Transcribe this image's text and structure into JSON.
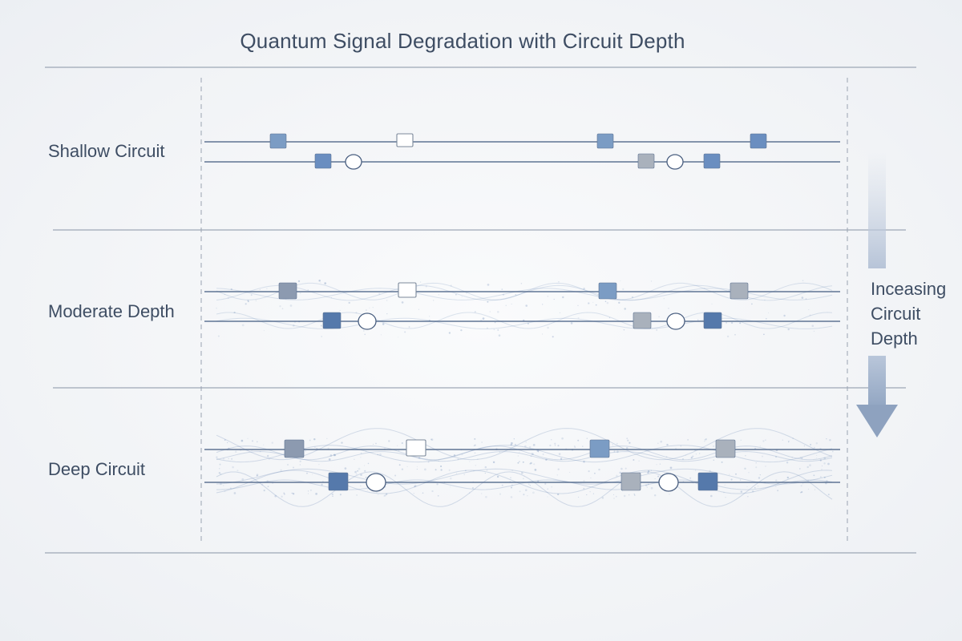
{
  "title": "Quantum Signal Degradation with Circuit Depth",
  "arrow": {
    "lines": [
      "Inceasing",
      "Circuit",
      "Depth"
    ]
  },
  "colors": {
    "wire": "#4f6689",
    "gate_blue_light": "#7b9cc4",
    "gate_blue_mid": "#6a8ec0",
    "gate_blue_dark": "#5579ab",
    "gate_gray": "#a9b1bc",
    "gate_slate": "#8c9ab0",
    "gate_white": "#ffffff",
    "rule": "#8995a6",
    "noise": "#6f8db8"
  },
  "rows": [
    {
      "label": "Shallow Circuit",
      "noise_level": 0,
      "qubit_1_gates": [
        {
          "type": "square",
          "color": "gate_blue_light"
        },
        {
          "type": "square",
          "color": "gate_white"
        },
        {
          "type": "square",
          "color": "gate_blue_light"
        },
        {
          "type": "square",
          "color": "gate_blue_mid"
        }
      ],
      "qubit_2_gates": [
        {
          "type": "square",
          "color": "gate_blue_mid"
        },
        {
          "type": "circle",
          "color": "gate_white"
        },
        {
          "type": "square",
          "color": "gate_gray"
        },
        {
          "type": "circle",
          "color": "gate_white"
        },
        {
          "type": "square",
          "color": "gate_blue_mid"
        }
      ]
    },
    {
      "label": "Moderate Depth",
      "noise_level": 1,
      "qubit_1_gates": [
        {
          "type": "square",
          "color": "gate_slate"
        },
        {
          "type": "square",
          "color": "gate_white"
        },
        {
          "type": "square",
          "color": "gate_blue_light"
        },
        {
          "type": "square",
          "color": "gate_gray"
        }
      ],
      "qubit_2_gates": [
        {
          "type": "square",
          "color": "gate_blue_dark"
        },
        {
          "type": "circle",
          "color": "gate_white"
        },
        {
          "type": "square",
          "color": "gate_gray"
        },
        {
          "type": "circle",
          "color": "gate_white"
        },
        {
          "type": "square",
          "color": "gate_blue_dark"
        }
      ]
    },
    {
      "label": "Deep Circuit",
      "noise_level": 2,
      "qubit_1_gates": [
        {
          "type": "square",
          "color": "gate_slate"
        },
        {
          "type": "square",
          "color": "gate_white"
        },
        {
          "type": "square",
          "color": "gate_blue_light"
        },
        {
          "type": "square",
          "color": "gate_gray"
        }
      ],
      "qubit_2_gates": [
        {
          "type": "square",
          "color": "gate_blue_dark"
        },
        {
          "type": "circle",
          "color": "gate_white"
        },
        {
          "type": "square",
          "color": "gate_gray"
        },
        {
          "type": "circle",
          "color": "gate_white"
        },
        {
          "type": "square",
          "color": "gate_blue_dark"
        }
      ]
    }
  ]
}
